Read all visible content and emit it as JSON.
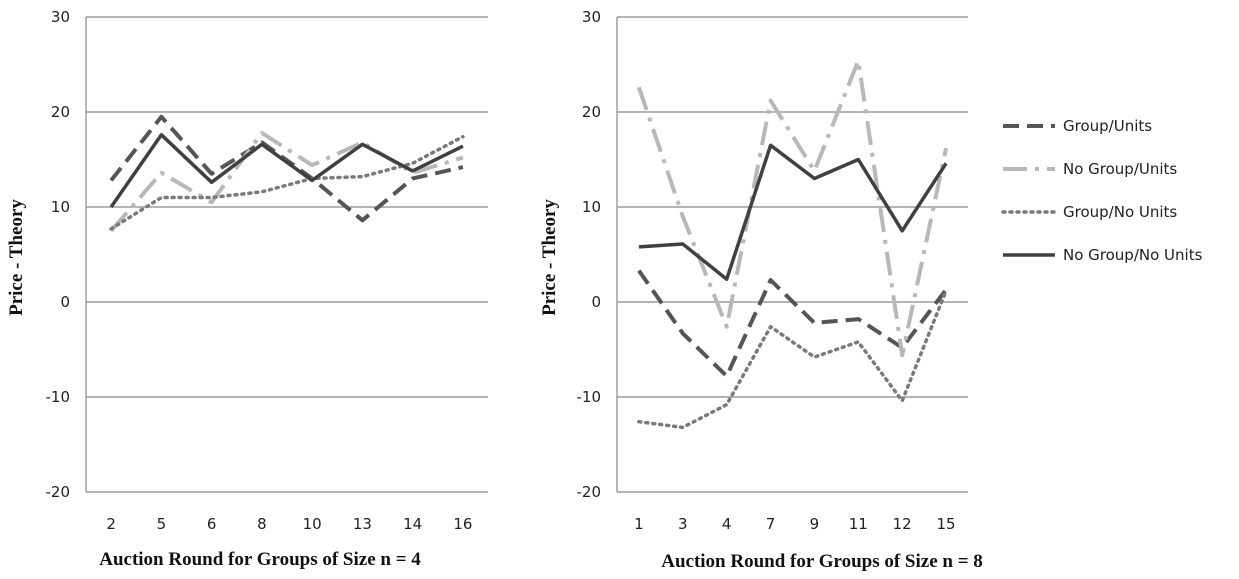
{
  "chart_data": [
    {
      "type": "line",
      "xlabel": "Auction Round for Groups of Size n = 4",
      "ylabel": "Price - Theory",
      "ylim": [
        -20,
        30
      ],
      "yticks": [
        -20,
        -10,
        0,
        10,
        20,
        30
      ],
      "categories": [
        "2",
        "5",
        "6",
        "8",
        "10",
        "13",
        "14",
        "16"
      ],
      "grid": "horizontal",
      "series": [
        {
          "name": "Group/Units",
          "values": [
            12.8,
            19.5,
            13.5,
            16.8,
            13.0,
            8.6,
            13.0,
            14.2
          ]
        },
        {
          "name": "No Group/Units",
          "values": [
            7.5,
            13.6,
            10.5,
            17.8,
            14.4,
            16.8,
            13.6,
            15.2
          ]
        },
        {
          "name": "Group/No Units",
          "values": [
            7.7,
            11.0,
            11.0,
            11.6,
            13.0,
            13.2,
            14.6,
            17.4
          ]
        },
        {
          "name": "No Group/No Units",
          "values": [
            10.0,
            17.6,
            12.6,
            16.6,
            12.8,
            16.6,
            13.8,
            16.4
          ]
        }
      ]
    },
    {
      "type": "line",
      "xlabel": "Auction Round for Groups of Size n = 8",
      "ylabel": "Price - Theory",
      "ylim": [
        -20,
        30
      ],
      "yticks": [
        -20,
        -10,
        0,
        10,
        20,
        30
      ],
      "categories": [
        "1",
        "3",
        "4",
        "7",
        "9",
        "11",
        "12",
        "15"
      ],
      "grid": "horizontal",
      "series": [
        {
          "name": "Group/Units",
          "values": [
            3.3,
            -3.3,
            -7.8,
            2.3,
            -2.2,
            -1.8,
            -4.8,
            1.3
          ]
        },
        {
          "name": "No Group/Units",
          "values": [
            22.6,
            9.0,
            -2.6,
            21.2,
            13.8,
            25.4,
            -5.6,
            16.2
          ]
        },
        {
          "name": "Group/No Units",
          "values": [
            -12.6,
            -13.2,
            -10.8,
            -2.6,
            -5.8,
            -4.2,
            -10.4,
            1.2
          ]
        },
        {
          "name": "No Group/No Units",
          "values": [
            5.8,
            6.1,
            2.4,
            16.5,
            13.0,
            15.0,
            7.5,
            14.6
          ]
        }
      ]
    }
  ],
  "legend": {
    "placement": "right",
    "entries": [
      "Group/Units",
      "No Group/Units",
      "Group/No Units",
      "No Group/No Units"
    ]
  },
  "styles": {
    "Group/Units": {
      "color": "#555555",
      "dash": "16,8",
      "width": 4
    },
    "No Group/Units": {
      "color": "#b8b8b8",
      "dash": "24,8,4,8",
      "width": 4
    },
    "Group/No Units": {
      "color": "#7a7a7a",
      "dash": "2,5",
      "width": 3.5
    },
    "No Group/No Units": {
      "color": "#404040",
      "dash": "",
      "width": 3.5
    }
  }
}
